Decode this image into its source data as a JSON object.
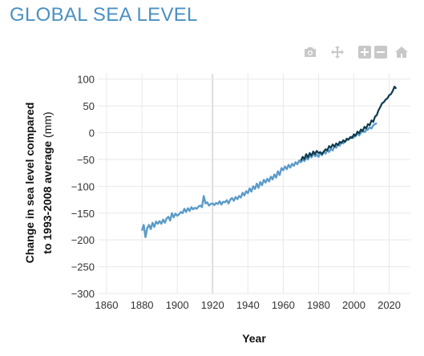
{
  "title": "GLOBAL SEA LEVEL",
  "toolbar": {
    "icons": [
      "camera-icon",
      "pan-icon",
      "zoom-in-icon",
      "zoom-out-icon",
      "home-icon"
    ]
  },
  "colors": {
    "title": "#4a90c2",
    "series_light": "#5b9bc8",
    "series_dark": "#0d3b4f",
    "grid": "#e8e8e8",
    "modebar": "#c8c8c8"
  },
  "chart_data": {
    "type": "line",
    "xlabel": "Year",
    "ylabel_bold": "Change in sea level compared to 1993-2008 average",
    "ylabel_unit": "(mm)",
    "xlim": [
      1855,
      2032
    ],
    "ylim": [
      -300,
      110
    ],
    "xticks": [
      1860,
      1880,
      1900,
      1920,
      1940,
      1960,
      1980,
      2000,
      2020
    ],
    "xtick_labels": [
      "1860",
      "1880",
      "1900",
      "1920",
      "1940",
      "1960",
      "1980",
      "2000",
      "2020"
    ],
    "yticks": [
      100,
      50,
      0,
      -50,
      -100,
      -150,
      -200,
      -250,
      -300
    ],
    "ytick_labels": [
      "100",
      "50",
      "0",
      "−50",
      "−100",
      "−150",
      "−200",
      "−250",
      "−300"
    ],
    "grid": true,
    "series": [
      {
        "x": [
          1880,
          1881,
          1882,
          1883,
          1884,
          1885,
          1886,
          1887,
          1888,
          1889,
          1890,
          1891,
          1892,
          1893,
          1894,
          1895,
          1896,
          1897,
          1898,
          1899,
          1900,
          1901,
          1902,
          1903,
          1904,
          1905,
          1906,
          1907,
          1908,
          1909,
          1910,
          1911,
          1912,
          1913,
          1914,
          1915,
          1916,
          1917,
          1918,
          1919,
          1920,
          1921,
          1922,
          1923,
          1924,
          1925,
          1926,
          1927,
          1928,
          1929,
          1930,
          1931,
          1932,
          1933,
          1934,
          1935,
          1936,
          1937,
          1938,
          1939,
          1940,
          1941,
          1942,
          1943,
          1944,
          1945,
          1946,
          1947,
          1948,
          1949,
          1950,
          1951,
          1952,
          1953,
          1954,
          1955,
          1956,
          1957,
          1958,
          1959,
          1960,
          1961,
          1962,
          1963,
          1964,
          1965,
          1966,
          1967,
          1968,
          1969,
          1970,
          1971,
          1972,
          1973,
          1974,
          1975,
          1976,
          1977,
          1978,
          1979,
          1980,
          1981,
          1982,
          1983,
          1984,
          1985,
          1986,
          1987,
          1988,
          1989,
          1990,
          1991,
          1992,
          1993,
          1994,
          1995,
          1996,
          1997,
          1998,
          1999,
          2000,
          2001,
          2002,
          2003,
          2004,
          2005,
          2006,
          2007,
          2008,
          2009,
          2010,
          2011,
          2012,
          2013
        ],
        "y": [
          -183,
          -172,
          -195,
          -178,
          -172,
          -180,
          -168,
          -176,
          -166,
          -170,
          -165,
          -170,
          -162,
          -168,
          -160,
          -157,
          -164,
          -150,
          -158,
          -151,
          -155,
          -152,
          -148,
          -150,
          -142,
          -148,
          -141,
          -146,
          -139,
          -143,
          -140,
          -142,
          -138,
          -136,
          -139,
          -118,
          -132,
          -130,
          -136,
          -133,
          -132,
          -135,
          -131,
          -133,
          -128,
          -134,
          -129,
          -130,
          -126,
          -132,
          -125,
          -122,
          -127,
          -120,
          -124,
          -118,
          -121,
          -112,
          -117,
          -109,
          -113,
          -104,
          -110,
          -100,
          -105,
          -95,
          -103,
          -92,
          -98,
          -88,
          -93,
          -86,
          -91,
          -82,
          -87,
          -78,
          -84,
          -72,
          -79,
          -66,
          -70,
          -63,
          -68,
          -60,
          -65,
          -58,
          -62,
          -55,
          -59,
          -52,
          -55,
          -50,
          -53,
          -47,
          -50,
          -42,
          -46,
          -38,
          -44,
          -41,
          -45,
          -38,
          -42,
          -35,
          -39,
          -32,
          -36,
          -30,
          -33,
          -25,
          -28,
          -22,
          -24,
          -18,
          -20,
          -16,
          -14,
          -12,
          -10,
          -7,
          -9,
          -4,
          -2,
          -5,
          0,
          3,
          1,
          5,
          6,
          10,
          8,
          14,
          16,
          18
        ]
      },
      {
        "x": [
          1970,
          1971,
          1972,
          1973,
          1974,
          1975,
          1976,
          1977,
          1978,
          1979,
          1980,
          1981,
          1982,
          1983,
          1984,
          1985,
          1986,
          1987,
          1988,
          1989,
          1990,
          1991,
          1992,
          1993,
          1994,
          1995,
          1996,
          1997,
          1998,
          1999,
          2000,
          2001,
          2002,
          2003,
          2004,
          2005,
          2006,
          2007,
          2008,
          2009,
          2010,
          2011,
          2012,
          2013,
          2014,
          2015,
          2016,
          2017,
          2018,
          2019,
          2020,
          2021,
          2022,
          2023,
          2024
        ],
        "y": [
          -52,
          -45,
          -49,
          -40,
          -46,
          -38,
          -43,
          -35,
          -40,
          -34,
          -38,
          -36,
          -40,
          -35,
          -31,
          -33,
          -25,
          -28,
          -22,
          -26,
          -20,
          -23,
          -17,
          -19,
          -14,
          -17,
          -11,
          -13,
          -8,
          -10,
          -3,
          -6,
          2,
          -1,
          6,
          3,
          11,
          8,
          16,
          14,
          23,
          20,
          30,
          33,
          42,
          48,
          55,
          57,
          62,
          64,
          70,
          72,
          78,
          86,
          82
        ]
      }
    ]
  }
}
